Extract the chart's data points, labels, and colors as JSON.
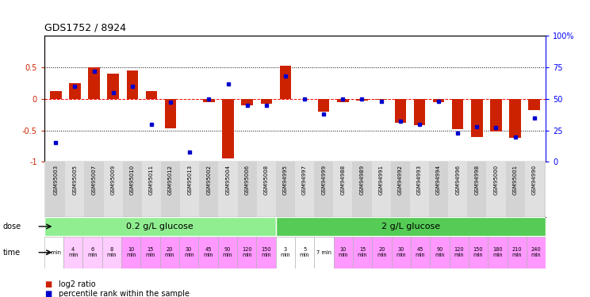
{
  "title": "GDS1752 / 8924",
  "sample_ids": [
    "GSM95003",
    "GSM95005",
    "GSM95007",
    "GSM95009",
    "GSM95010",
    "GSM95011",
    "GSM95012",
    "GSM95013",
    "GSM95002",
    "GSM95004",
    "GSM95006",
    "GSM95008",
    "GSM94995",
    "GSM94997",
    "GSM94999",
    "GSM94988",
    "GSM94989",
    "GSM94991",
    "GSM94992",
    "GSM94993",
    "GSM94994",
    "GSM94996",
    "GSM94998",
    "GSM95000",
    "GSM95001",
    "GSM94990"
  ],
  "log2_ratio": [
    0.12,
    0.25,
    0.5,
    0.4,
    0.45,
    0.12,
    -0.47,
    0.0,
    -0.05,
    -0.95,
    -0.1,
    -0.08,
    0.52,
    0.0,
    -0.2,
    -0.05,
    -0.03,
    -0.02,
    -0.38,
    -0.42,
    -0.05,
    -0.48,
    -0.6,
    -0.52,
    -0.62,
    -0.18
  ],
  "percentile_rank": [
    15,
    60,
    72,
    55,
    60,
    30,
    47,
    8,
    50,
    62,
    45,
    45,
    68,
    50,
    38,
    50,
    50,
    48,
    32,
    30,
    48,
    23,
    28,
    27,
    20,
    35
  ],
  "dose_groups": [
    {
      "label": "0.2 g/L glucose",
      "start": 0,
      "end": 12,
      "color": "#90ee90"
    },
    {
      "label": "2 g/L glucose",
      "start": 12,
      "end": 26,
      "color": "#55cc55"
    }
  ],
  "time_labels": [
    "2 min",
    "4\nmin",
    "6\nmin",
    "8\nmin",
    "10\nmin",
    "15\nmin",
    "20\nmin",
    "30\nmin",
    "45\nmin",
    "90\nmin",
    "120\nmin",
    "150\nmin",
    "3\nmin",
    "5\nmin",
    "7 min",
    "10\nmin",
    "15\nmin",
    "20\nmin",
    "30\nmin",
    "45\nmin",
    "90\nmin",
    "120\nmin",
    "150\nmin",
    "180\nmin",
    "210\nmin",
    "240\nmin"
  ],
  "time_colors": [
    "#ffffff",
    "#ffccff",
    "#ffccff",
    "#ffccff",
    "#ff99ff",
    "#ff99ff",
    "#ff99ff",
    "#ff99ff",
    "#ff99ff",
    "#ff99ff",
    "#ff99ff",
    "#ff99ff",
    "#ffffff",
    "#ffffff",
    "#ffffff",
    "#ff99ff",
    "#ff99ff",
    "#ff99ff",
    "#ff99ff",
    "#ff99ff",
    "#ff99ff",
    "#ff99ff",
    "#ff99ff",
    "#ff99ff",
    "#ff99ff",
    "#ff99ff"
  ],
  "bar_color": "#cc2200",
  "dot_color": "#0000cc",
  "ylim_left": [
    -1,
    1
  ],
  "ylim_right": [
    0,
    100
  ],
  "yticks_left": [
    -1,
    -0.5,
    0,
    0.5
  ],
  "ytick_labels_left": [
    "-1",
    "-0.5",
    "0",
    "0.5"
  ],
  "yticks_right": [
    0,
    25,
    50,
    75,
    100
  ],
  "ytick_labels_right": [
    "0",
    "25",
    "50",
    "75",
    "100%"
  ],
  "hlines_dotted": [
    0.5,
    -0.5
  ],
  "hline_dashed": 0.0,
  "background_color": "#ffffff"
}
